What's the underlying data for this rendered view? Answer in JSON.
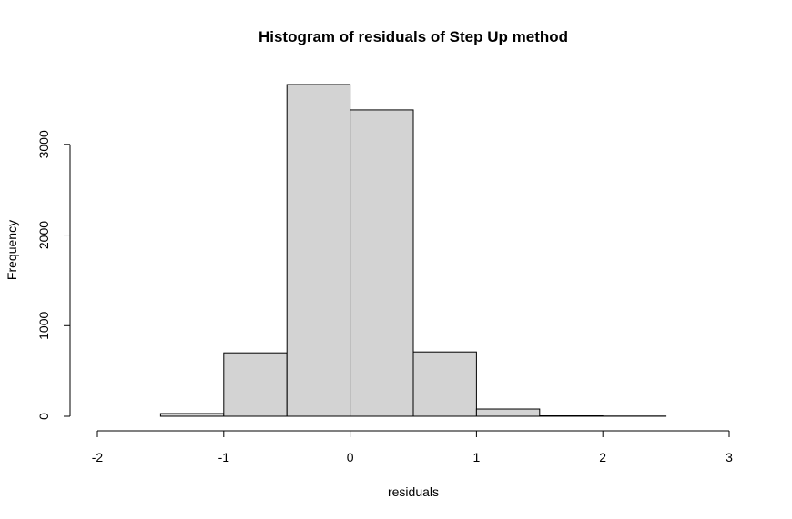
{
  "chart_data": {
    "type": "bar",
    "title": "Histogram of residuals of Step Up method",
    "xlabel": "residuals",
    "ylabel": "Frequency",
    "bin_edges": [
      -2,
      -1.5,
      -1,
      -0.5,
      0,
      0.5,
      1,
      1.5,
      2,
      2.5,
      3
    ],
    "values": [
      0,
      30,
      700,
      3660,
      3380,
      710,
      80,
      5,
      2,
      0
    ],
    "xlim": [
      -2,
      3
    ],
    "ylim": [
      0,
      3660
    ],
    "x_ticks": [
      -2,
      -1,
      0,
      1,
      2,
      3
    ],
    "x_tick_labels": [
      "-2",
      "-1",
      "0",
      "1",
      "2",
      "3"
    ],
    "y_ticks": [
      0,
      1000,
      2000,
      3000
    ],
    "y_tick_labels": [
      "0",
      "1000",
      "2000",
      "3000"
    ],
    "grid": false,
    "bar_fill": "#d3d3d3"
  }
}
